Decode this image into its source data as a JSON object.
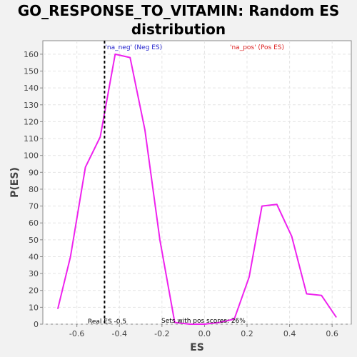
{
  "chart_data": {
    "type": "line",
    "title_line1": "GO_RESPONSE_TO_VITAMIN: Random ES",
    "title_line2": "distribution",
    "xlabel": "ES",
    "ylabel": "P(ES)",
    "xlim": [
      -0.76,
      0.69
    ],
    "ylim": [
      0,
      168
    ],
    "xticks": [
      -0.6,
      -0.4,
      -0.2,
      0.0,
      0.2,
      0.4,
      0.6
    ],
    "xtick_labels": [
      "-0.6",
      "-0.4",
      "-0.2",
      "0.0",
      "0.2",
      "0.4",
      "0.6"
    ],
    "yticks": [
      0,
      10,
      20,
      30,
      40,
      50,
      60,
      70,
      80,
      90,
      100,
      110,
      120,
      130,
      140,
      150,
      160
    ],
    "ytick_labels": [
      "0",
      "10",
      "20",
      "30",
      "40",
      "50",
      "60",
      "70",
      "80",
      "90",
      "100",
      "110",
      "120",
      "130",
      "140",
      "150",
      "160"
    ],
    "grid": true,
    "series": [
      {
        "color": "#ee22ee",
        "x": [
          -0.69,
          -0.63,
          -0.56,
          -0.49,
          -0.42,
          -0.35,
          -0.28,
          -0.21,
          -0.14,
          -0.07,
          0.0,
          0.07,
          0.14,
          0.21,
          0.27,
          0.34,
          0.41,
          0.48,
          0.55,
          0.62
        ],
        "y": [
          9,
          40,
          93,
          111,
          160,
          158,
          115,
          50,
          1,
          0,
          0,
          1,
          3,
          28,
          70,
          71,
          52,
          18,
          17,
          4
        ]
      }
    ],
    "real_es": -0.47,
    "real_es_color": "#000000",
    "annotations": {
      "neg_label": "'na_neg' (Neg ES)",
      "neg_color": "#2222cc",
      "pos_label": "'na_pos' (Pos ES)",
      "pos_color": "#dd2222",
      "real_es_text": "Real ES -0.5",
      "pos_scores_text": "Sets with pos scores: 26%"
    }
  }
}
